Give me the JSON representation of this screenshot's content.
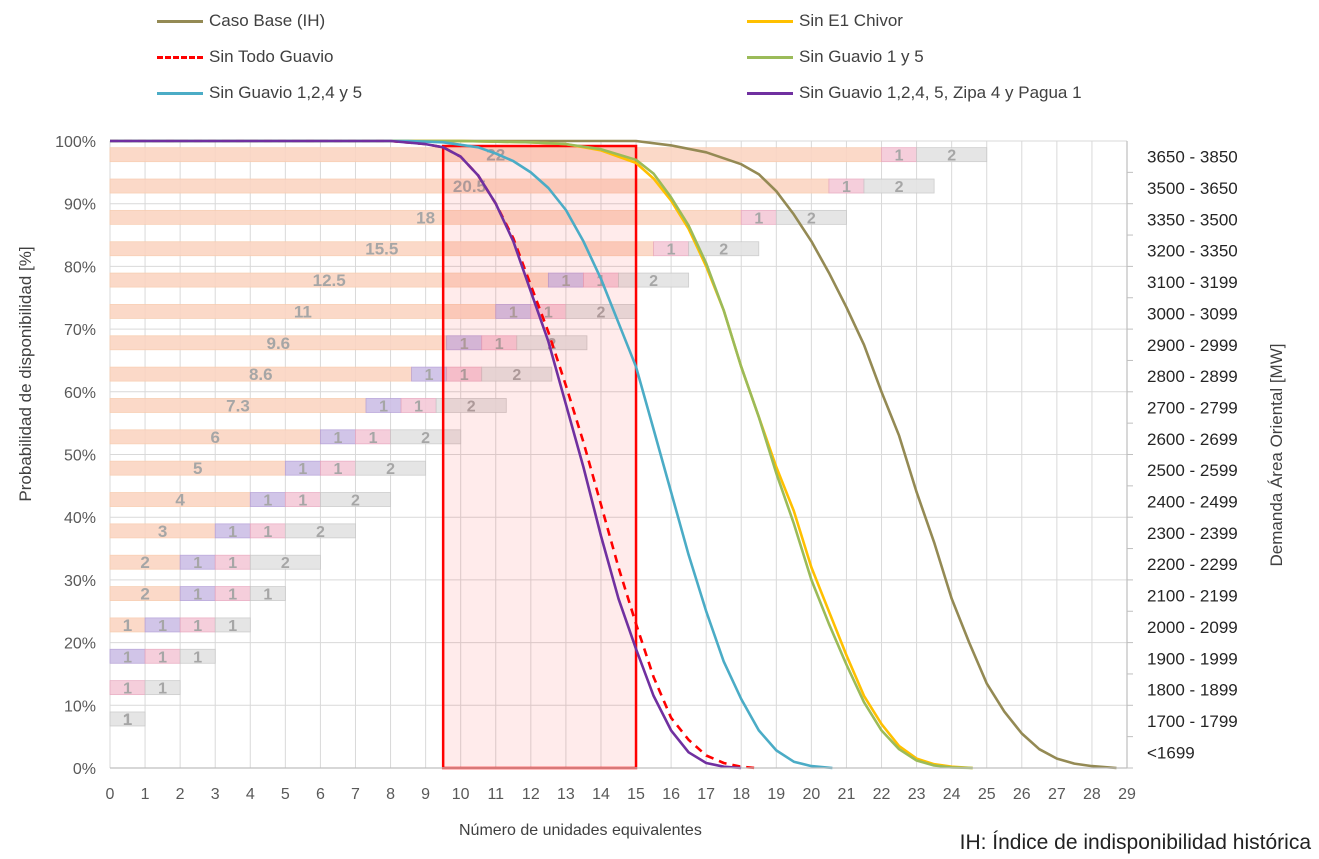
{
  "chart_data": {
    "type": "line",
    "xlabel": "Número de unidades equivalentes",
    "ylabel": "Probabilidad de disponibilidad [%]",
    "y2label": "Demanda Área Oriental [MW]",
    "xlim": [
      0,
      29
    ],
    "ylim": [
      0,
      100
    ],
    "x_ticks": [
      "0",
      "1",
      "2",
      "3",
      "4",
      "5",
      "6",
      "7",
      "8",
      "9",
      "10",
      "11",
      "12",
      "13",
      "14",
      "15",
      "16",
      "17",
      "18",
      "19",
      "20",
      "21",
      "22",
      "23",
      "24",
      "25",
      "26",
      "27",
      "28",
      "29"
    ],
    "y_ticks": [
      "0%",
      "10%",
      "20%",
      "30%",
      "40%",
      "50%",
      "60%",
      "70%",
      "80%",
      "90%",
      "100%"
    ],
    "y2_ticks": [
      "<1699",
      "1700 - 1799",
      "1800 - 1899",
      "1900 - 1999",
      "2000 - 2099",
      "2100 - 2199",
      "2200 - 2299",
      "2300 - 2399",
      "2400 - 2499",
      "2500 - 2599",
      "2600 - 2699",
      "2700 - 2799",
      "2800 - 2899",
      "2900 - 2999",
      "3000 - 3099",
      "3100 - 3199",
      "3200 - 3350",
      "3350 - 3500",
      "3500 - 3650",
      "3650 - 3850"
    ],
    "grid": true,
    "legend_position": "top",
    "series": [
      {
        "name": "Caso Base (IH)",
        "color": "#948a54",
        "dash": false,
        "x": [
          0,
          8,
          13,
          15,
          16,
          17,
          18,
          18.5,
          19,
          19.5,
          20,
          20.5,
          21,
          21.5,
          22,
          22.5,
          23,
          23.5,
          24,
          24.5,
          25,
          25.5,
          26,
          26.5,
          27,
          27.5,
          28,
          28.7
        ],
        "y": [
          100,
          100,
          100,
          100,
          99.3,
          98.2,
          96.3,
          94.7,
          92,
          88.3,
          84,
          79,
          73.5,
          67.5,
          60,
          53,
          44,
          36,
          27,
          20,
          13.5,
          9,
          5.5,
          3,
          1.5,
          0.7,
          0.3,
          0
        ]
      },
      {
        "name": "Sin E1 Chivor",
        "color": "#ffc000",
        "dash": false,
        "x": [
          0,
          10,
          12,
          13,
          14,
          15,
          15.5,
          16,
          16.5,
          17,
          17.5,
          18,
          18.5,
          19,
          19.5,
          20,
          20.5,
          21,
          21.5,
          22,
          22.5,
          23,
          23.5,
          24,
          24.6
        ],
        "y": [
          100,
          100,
          99.8,
          99.5,
          98.5,
          96.5,
          94,
          90.5,
          86,
          80,
          73,
          64,
          56,
          48,
          41,
          32,
          25,
          18,
          11.5,
          7,
          3.5,
          1.5,
          0.6,
          0.2,
          0
        ]
      },
      {
        "name": "Sin Todo Guavio",
        "color": "#ff0000",
        "dash": true,
        "x": [
          0,
          8,
          9,
          9.5,
          10,
          10.5,
          11,
          11.5,
          12,
          12.5,
          13,
          13.5,
          14,
          14.5,
          15,
          15.5,
          16,
          16.5,
          17,
          17.5,
          18,
          18.4
        ],
        "y": [
          100,
          100,
          99.5,
          99,
          97.5,
          94.5,
          90,
          84.5,
          77,
          69.5,
          61,
          52,
          42,
          32,
          23,
          14.5,
          8,
          4.5,
          2,
          0.8,
          0.2,
          0
        ]
      },
      {
        "name": "Sin Guavio 1 y 5",
        "color": "#9bbb59",
        "dash": false,
        "x": [
          0,
          10,
          12,
          13,
          14,
          15,
          15.5,
          16,
          16.5,
          17,
          17.5,
          18,
          18.5,
          19,
          19.5,
          20,
          20.5,
          21,
          21.5,
          22,
          22.5,
          23,
          23.5,
          24,
          24.6
        ],
        "y": [
          100,
          100,
          99.8,
          99.5,
          98.7,
          97,
          94.8,
          91,
          86.5,
          80.5,
          73,
          64,
          56,
          47,
          39,
          30,
          23,
          16.5,
          10.5,
          6,
          3,
          1.2,
          0.4,
          0.1,
          0
        ]
      },
      {
        "name": "Sin Guavio 1,2,4 y 5",
        "color": "#4bacc6",
        "dash": false,
        "x": [
          0,
          8.5,
          9.5,
          10.5,
          11,
          11.5,
          12,
          12.5,
          13,
          13.5,
          14,
          14.5,
          15,
          15.5,
          16,
          16.5,
          17,
          17.5,
          18,
          18.5,
          19,
          19.5,
          20,
          20.6
        ],
        "y": [
          100,
          100,
          99.8,
          99,
          98,
          96.8,
          95,
          92.5,
          89,
          84,
          78,
          71,
          64,
          54,
          44,
          34,
          25,
          17,
          11,
          6,
          2.8,
          1,
          0.3,
          0
        ]
      },
      {
        "name": "Sin Guavio 1,2,4, 5, Zipa 4 y Pagua 1",
        "color": "#7030a0",
        "dash": false,
        "x": [
          0,
          8,
          9,
          9.5,
          10,
          10.5,
          11,
          11.5,
          12,
          12.5,
          13,
          13.5,
          14,
          14.5,
          15,
          15.5,
          16,
          16.5,
          17,
          17.5,
          18
        ],
        "y": [
          100,
          100,
          99.5,
          99,
          97.5,
          94.5,
          90,
          84,
          76,
          68,
          58,
          48,
          37,
          27,
          19,
          11.5,
          6,
          2.5,
          0.8,
          0.2,
          0
        ]
      }
    ],
    "bars": [
      {
        "demand": "<1699",
        "label": "",
        "segments": []
      },
      {
        "demand": "1700 - 1799",
        "label": "1",
        "segments": [
          {
            "from": 0,
            "to": 1,
            "kind": "grey",
            "label": "1"
          }
        ]
      },
      {
        "demand": "1800 - 1899",
        "label": "",
        "segments": [
          {
            "from": 0,
            "to": 1,
            "kind": "pink",
            "label": "1"
          },
          {
            "from": 1,
            "to": 2,
            "kind": "grey",
            "label": "1"
          }
        ]
      },
      {
        "demand": "1900 - 1999",
        "label": "",
        "segments": [
          {
            "from": 0,
            "to": 1,
            "kind": "purple",
            "label": "1"
          },
          {
            "from": 1,
            "to": 2,
            "kind": "pink",
            "label": "1"
          },
          {
            "from": 2,
            "to": 3,
            "kind": "grey",
            "label": "1"
          }
        ]
      },
      {
        "demand": "2000 - 2099",
        "label": "1",
        "segments": [
          {
            "from": 0,
            "to": 1,
            "kind": "orange",
            "label": ""
          },
          {
            "from": 1,
            "to": 2,
            "kind": "purple",
            "label": "1"
          },
          {
            "from": 2,
            "to": 3,
            "kind": "pink",
            "label": "1"
          },
          {
            "from": 3,
            "to": 4,
            "kind": "grey",
            "label": "1"
          }
        ]
      },
      {
        "demand": "2100 - 2199",
        "label": "2",
        "segments": [
          {
            "from": 0,
            "to": 2,
            "kind": "orange",
            "label": ""
          },
          {
            "from": 2,
            "to": 3,
            "kind": "purple",
            "label": "1"
          },
          {
            "from": 3,
            "to": 4,
            "kind": "pink",
            "label": "1"
          },
          {
            "from": 4,
            "to": 5,
            "kind": "grey",
            "label": "1"
          }
        ]
      },
      {
        "demand": "2200 - 2299",
        "label": "2",
        "segments": [
          {
            "from": 0,
            "to": 2,
            "kind": "orange",
            "label": ""
          },
          {
            "from": 2,
            "to": 3,
            "kind": "purple",
            "label": "1"
          },
          {
            "from": 3,
            "to": 4,
            "kind": "pink",
            "label": "1"
          },
          {
            "from": 4,
            "to": 6,
            "kind": "grey",
            "label": "2"
          }
        ]
      },
      {
        "demand": "2300 - 2399",
        "label": "3",
        "segments": [
          {
            "from": 0,
            "to": 3,
            "kind": "orange",
            "label": ""
          },
          {
            "from": 3,
            "to": 4,
            "kind": "purple",
            "label": "1"
          },
          {
            "from": 4,
            "to": 5,
            "kind": "pink",
            "label": "1"
          },
          {
            "from": 5,
            "to": 7,
            "kind": "grey",
            "label": "2"
          }
        ]
      },
      {
        "demand": "2400 - 2499",
        "label": "4",
        "segments": [
          {
            "from": 0,
            "to": 4,
            "kind": "orange",
            "label": ""
          },
          {
            "from": 4,
            "to": 5,
            "kind": "purple",
            "label": "1"
          },
          {
            "from": 5,
            "to": 6,
            "kind": "pink",
            "label": "1"
          },
          {
            "from": 6,
            "to": 8,
            "kind": "grey",
            "label": "2"
          }
        ]
      },
      {
        "demand": "2500 - 2599",
        "label": "5",
        "segments": [
          {
            "from": 0,
            "to": 5,
            "kind": "orange",
            "label": ""
          },
          {
            "from": 5,
            "to": 6,
            "kind": "purple",
            "label": "1"
          },
          {
            "from": 6,
            "to": 7,
            "kind": "pink",
            "label": "1"
          },
          {
            "from": 7,
            "to": 9,
            "kind": "grey",
            "label": "2"
          }
        ]
      },
      {
        "demand": "2600 - 2699",
        "label": "6",
        "segments": [
          {
            "from": 0,
            "to": 6,
            "kind": "orange",
            "label": ""
          },
          {
            "from": 6,
            "to": 7,
            "kind": "purple",
            "label": "1"
          },
          {
            "from": 7,
            "to": 8,
            "kind": "pink",
            "label": "1"
          },
          {
            "from": 8,
            "to": 10,
            "kind": "grey",
            "label": "2"
          }
        ]
      },
      {
        "demand": "2700 - 2799",
        "label": "7.3",
        "segments": [
          {
            "from": 0,
            "to": 7.3,
            "kind": "orange",
            "label": ""
          },
          {
            "from": 7.3,
            "to": 8.3,
            "kind": "purple",
            "label": "1"
          },
          {
            "from": 8.3,
            "to": 9.3,
            "kind": "pink",
            "label": "1"
          },
          {
            "from": 9.3,
            "to": 11.3,
            "kind": "grey",
            "label": "2"
          }
        ]
      },
      {
        "demand": "2800 - 2899",
        "label": "8.6",
        "segments": [
          {
            "from": 0,
            "to": 8.6,
            "kind": "orange",
            "label": ""
          },
          {
            "from": 8.6,
            "to": 9.6,
            "kind": "purple",
            "label": "1"
          },
          {
            "from": 9.6,
            "to": 10.6,
            "kind": "pink",
            "label": "1"
          },
          {
            "from": 10.6,
            "to": 12.6,
            "kind": "grey",
            "label": "2"
          }
        ]
      },
      {
        "demand": "2900 - 2999",
        "label": "9.6",
        "segments": [
          {
            "from": 0,
            "to": 9.6,
            "kind": "orange",
            "label": ""
          },
          {
            "from": 9.6,
            "to": 10.6,
            "kind": "purple",
            "label": "1"
          },
          {
            "from": 10.6,
            "to": 11.6,
            "kind": "pink",
            "label": "1"
          },
          {
            "from": 11.6,
            "to": 13.6,
            "kind": "grey",
            "label": "2"
          }
        ]
      },
      {
        "demand": "3000 - 3099",
        "label": "11",
        "segments": [
          {
            "from": 0,
            "to": 11,
            "kind": "orange",
            "label": ""
          },
          {
            "from": 11,
            "to": 12,
            "kind": "purple",
            "label": "1"
          },
          {
            "from": 12,
            "to": 13,
            "kind": "pink",
            "label": "1"
          },
          {
            "from": 13,
            "to": 15,
            "kind": "grey",
            "label": "2"
          }
        ]
      },
      {
        "demand": "3100 - 3199",
        "label": "12.5",
        "segments": [
          {
            "from": 0,
            "to": 12.5,
            "kind": "orange",
            "label": ""
          },
          {
            "from": 12.5,
            "to": 13.5,
            "kind": "purple",
            "label": "1"
          },
          {
            "from": 13.5,
            "to": 14.5,
            "kind": "pink",
            "label": "1"
          },
          {
            "from": 14.5,
            "to": 16.5,
            "kind": "grey",
            "label": "2"
          }
        ]
      },
      {
        "demand": "3200 - 3350",
        "label": "15.5",
        "segments": [
          {
            "from": 0,
            "to": 15.5,
            "kind": "orange",
            "label": ""
          },
          {
            "from": 15.5,
            "to": 16.5,
            "kind": "pink",
            "label": "1"
          },
          {
            "from": 16.5,
            "to": 18.5,
            "kind": "grey",
            "label": "2"
          }
        ]
      },
      {
        "demand": "3350 - 3500",
        "label": "18",
        "segments": [
          {
            "from": 0,
            "to": 18,
            "kind": "orange",
            "label": ""
          },
          {
            "from": 18,
            "to": 19,
            "kind": "pink",
            "label": "1"
          },
          {
            "from": 19,
            "to": 21,
            "kind": "grey",
            "label": "2"
          }
        ]
      },
      {
        "demand": "3500 - 3650",
        "label": "20.5",
        "segments": [
          {
            "from": 0,
            "to": 20.5,
            "kind": "orange",
            "label": ""
          },
          {
            "from": 20.5,
            "to": 21.5,
            "kind": "pink",
            "label": "1"
          },
          {
            "from": 21.5,
            "to": 23.5,
            "kind": "grey",
            "label": "2"
          }
        ]
      },
      {
        "demand": "3650 - 3850",
        "label": "22",
        "segments": [
          {
            "from": 0,
            "to": 22,
            "kind": "orange",
            "label": ""
          },
          {
            "from": 22,
            "to": 23,
            "kind": "pink",
            "label": "1"
          },
          {
            "from": 23,
            "to": 25,
            "kind": "grey",
            "label": "2"
          }
        ]
      }
    ],
    "highlight_region": {
      "x_from": 9.5,
      "x_to": 15,
      "y_from": 0,
      "y_to": 99.2,
      "color": "#ff0000"
    },
    "segment_colors": {
      "orange": "#fbd5c3",
      "purple": "#cdbfe6",
      "pink": "#f4c9d8",
      "grey": "#e3e3e3"
    }
  },
  "footnote": "IH: Índice de indisponibilidad histórica"
}
